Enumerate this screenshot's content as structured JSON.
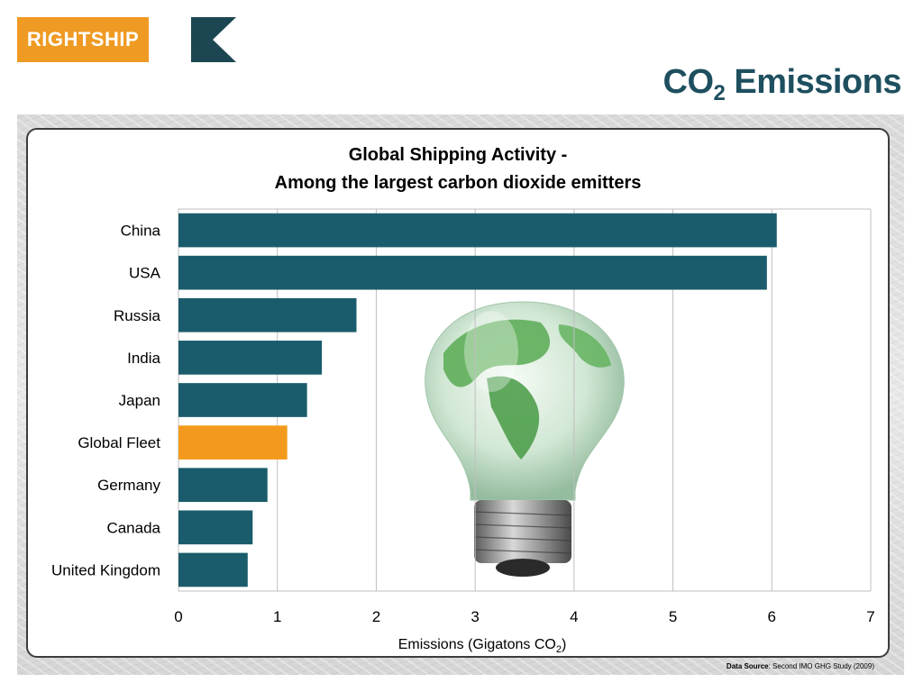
{
  "logo": {
    "text": "RIGHTSHIP"
  },
  "slide": {
    "title_main": "CO",
    "title_sub": "2",
    "title_rest": " Emissions"
  },
  "chart_data": {
    "type": "bar",
    "orientation": "horizontal",
    "title": [
      "Global Shipping Activity -",
      "Among the largest carbon dioxide emitters"
    ],
    "categories": [
      "China",
      "USA",
      "Russia",
      "India",
      "Japan",
      "Global Fleet",
      "Germany",
      "Canada",
      "United Kingdom"
    ],
    "values": [
      6.05,
      5.95,
      1.8,
      1.45,
      1.3,
      1.1,
      0.9,
      0.75,
      0.7
    ],
    "highlight_category": "Global Fleet",
    "xlabel_main": "Emissions (Gigatons CO",
    "xlabel_sub": "2",
    "xlabel_end": ")",
    "ylabel": "",
    "xlim": [
      0,
      7
    ],
    "xticks": [
      "0",
      "1",
      "2",
      "3",
      "4",
      "5",
      "6",
      "7"
    ],
    "grid": true,
    "colors": {
      "bar": "#1a5c6b",
      "highlight": "#f39a1e",
      "grid": "#bfbfbf"
    }
  },
  "source": {
    "label": "Data Source",
    "text": ": Second IMO GHG Study (2009)"
  }
}
